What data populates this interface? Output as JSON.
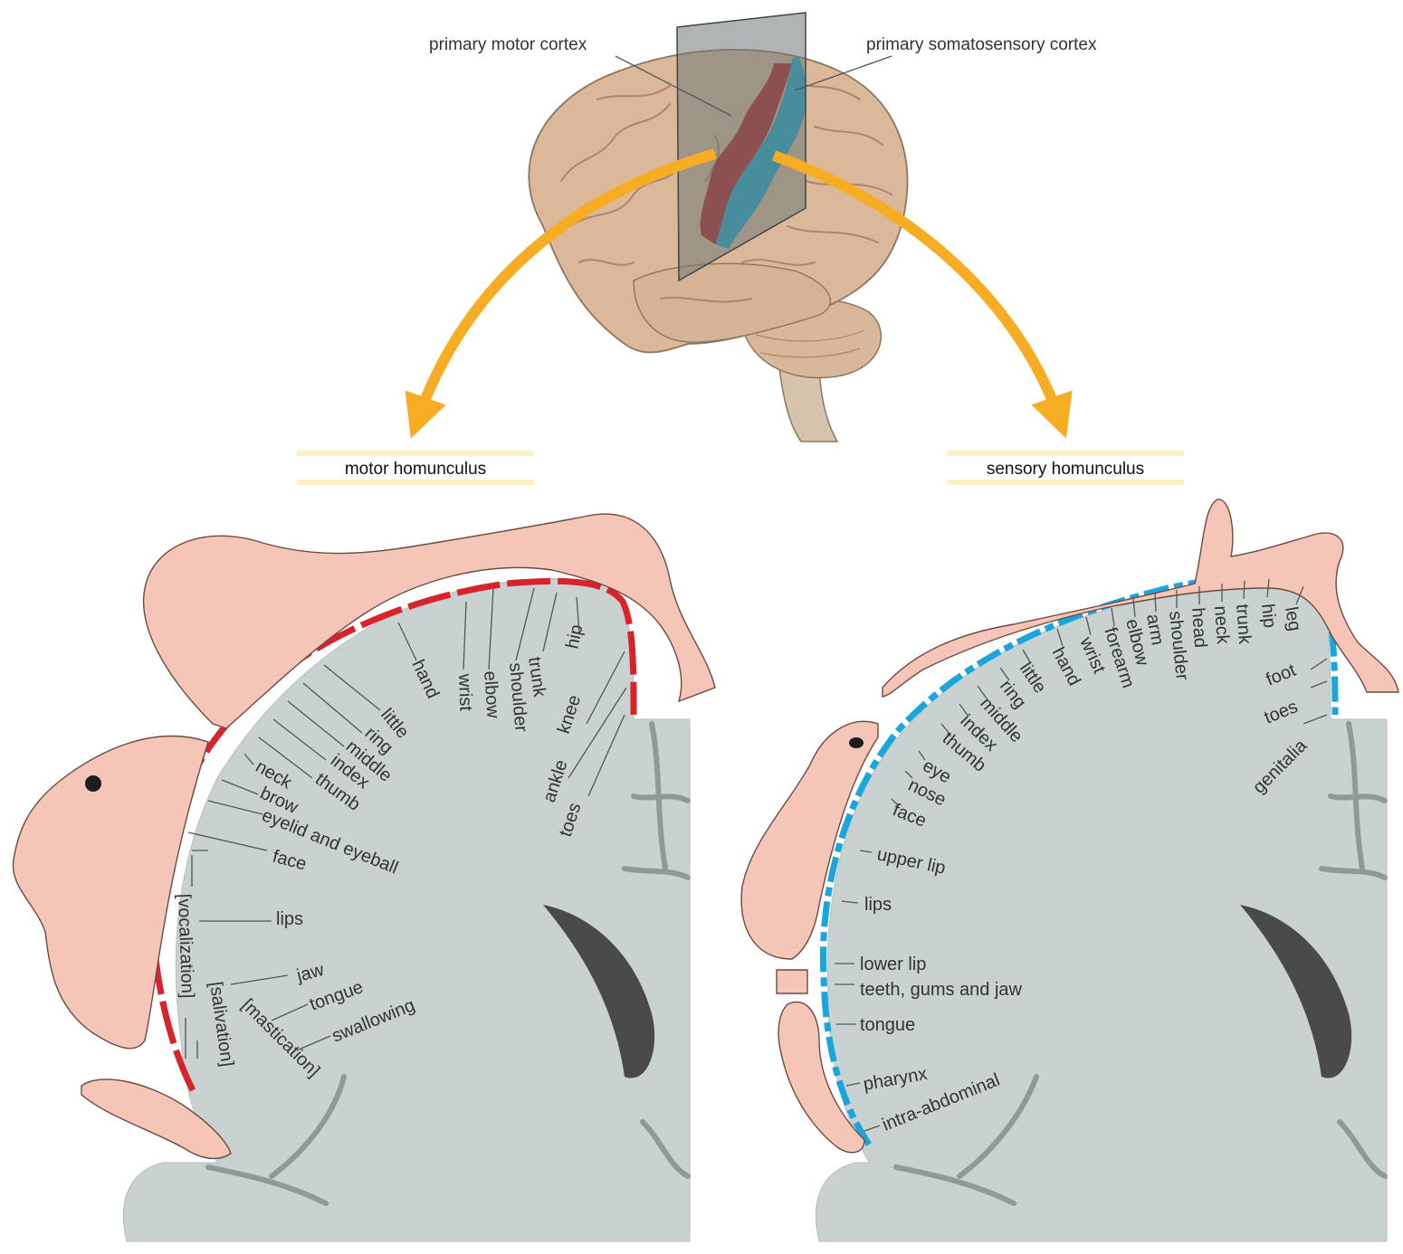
{
  "brain": {
    "motor_cortex_label": "primary motor cortex",
    "somatosensory_label": "primary somatosensory cortex"
  },
  "panels": [
    {
      "id": "motor",
      "title": "motor homunculus",
      "strip_color": "#d8232a",
      "labels": [
        "hip",
        "knee",
        "ankle",
        "toes",
        "trunk",
        "shoulder",
        "elbow",
        "wrist",
        "hand",
        "little",
        "ring",
        "middle",
        "index",
        "thumb",
        "neck",
        "brow",
        "eyelid and eyeball",
        "face",
        "lips",
        "jaw",
        "tongue",
        "swallowing"
      ],
      "brackets": [
        "[vocalization]",
        "[salivation]",
        "[mastication]"
      ]
    },
    {
      "id": "sensory",
      "title": "sensory homunculus",
      "strip_color": "#1aa6dc",
      "labels": [
        "leg",
        "hip",
        "trunk",
        "neck",
        "head",
        "shoulder",
        "arm",
        "elbow",
        "forearm",
        "wrist",
        "hand",
        "little",
        "ring",
        "middle",
        "index",
        "thumb",
        "eye",
        "nose",
        "face",
        "upper lip",
        "lips",
        "lower lip",
        "teeth, gums and jaw",
        "tongue",
        "pharynx",
        "intra-abdominal",
        "foot",
        "toes",
        "genitalia"
      ]
    }
  ],
  "colors": {
    "arrow": "#f6ad24",
    "brain": "#dcb89a",
    "motor_strip": "#b31f24",
    "sensory_strip": "#1aa6c8",
    "tissue": "#c9d2d0",
    "skin": "#f5c6b8",
    "title_bar": "#fdf1c4"
  }
}
